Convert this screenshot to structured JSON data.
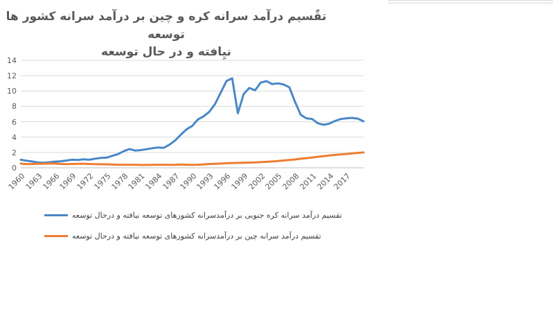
{
  "page": {
    "background": "#ffffff",
    "top_strip_color": "#d9d9d9"
  },
  "chart_data": {
    "type": "line",
    "title": "تقًسیم درآمد سرانه کره و چین بر درآمد سرانه کشور ها توسعه نیِافته و در حال توسعه",
    "title_lines": [
      "تقًسیم درآمد سرانه کره و چین بر درآمد سرانه کشور ها توسعه",
      "نیِافته و در حال توسعه"
    ],
    "xlabel": "",
    "ylabel": "",
    "ylim": [
      0,
      14
    ],
    "y_ticks": [
      0,
      2,
      4,
      6,
      8,
      10,
      12,
      14
    ],
    "grid": "horizontal",
    "grid_color": "#d9d9d9",
    "axis_color": "#bfbfbf",
    "tick_label_color": "#595959",
    "legend_position": "bottom-left",
    "x_tick_labels": [
      "1960",
      "1963",
      "1966",
      "1969",
      "1972",
      "1975",
      "1978",
      "1981",
      "1984",
      "1987",
      "1990",
      "1993",
      "1996",
      "1999",
      "2002",
      "2005",
      "2008",
      "2011",
      "2014",
      "2017"
    ],
    "x": [
      1960,
      1961,
      1962,
      1963,
      1964,
      1965,
      1966,
      1967,
      1968,
      1969,
      1970,
      1971,
      1972,
      1973,
      1974,
      1975,
      1976,
      1977,
      1978,
      1979,
      1980,
      1981,
      1982,
      1983,
      1984,
      1985,
      1986,
      1987,
      1988,
      1989,
      1990,
      1991,
      1992,
      1993,
      1994,
      1995,
      1996,
      1997,
      1998,
      1999,
      2000,
      2001,
      2002,
      2003,
      2004,
      2005,
      2006,
      2007,
      2008,
      2009,
      2010,
      2011,
      2012,
      2013,
      2014,
      2015,
      2016,
      2017,
      2018,
      2019,
      2020
    ],
    "series": [
      {
        "name": "تقسیم درآمد سرانه کره جنوبی بر درآمدسرانه کشورهای توسعه نیافته و درحال توسعه",
        "color": "#4a87c7",
        "values": [
          1.05,
          0.92,
          0.82,
          0.7,
          0.65,
          0.72,
          0.8,
          0.85,
          0.95,
          1.05,
          1.02,
          1.1,
          1.05,
          1.18,
          1.28,
          1.32,
          1.55,
          1.78,
          2.15,
          2.45,
          2.25,
          2.3,
          2.42,
          2.55,
          2.65,
          2.6,
          3.0,
          3.55,
          4.3,
          5.0,
          5.45,
          6.3,
          6.7,
          7.3,
          8.3,
          9.8,
          11.3,
          11.65,
          7.1,
          9.6,
          10.4,
          10.1,
          11.1,
          11.3,
          10.9,
          11.0,
          10.85,
          10.5,
          8.6,
          6.9,
          6.45,
          6.35,
          5.8,
          5.6,
          5.75,
          6.1,
          6.35,
          6.45,
          6.5,
          6.4,
          6.05
        ]
      },
      {
        "name": "تقسیم درآمد سرانه  چین بر درآمدسرانه کشورهای توسعه نیافته و درحال توسعه",
        "color": "#ED7D31",
        "values": [
          0.55,
          0.48,
          0.5,
          0.52,
          0.53,
          0.55,
          0.55,
          0.5,
          0.47,
          0.5,
          0.52,
          0.53,
          0.5,
          0.48,
          0.46,
          0.45,
          0.42,
          0.4,
          0.4,
          0.4,
          0.4,
          0.37,
          0.37,
          0.38,
          0.4,
          0.4,
          0.38,
          0.39,
          0.42,
          0.4,
          0.38,
          0.4,
          0.44,
          0.5,
          0.52,
          0.55,
          0.6,
          0.62,
          0.63,
          0.65,
          0.68,
          0.7,
          0.74,
          0.78,
          0.82,
          0.88,
          0.95,
          1.02,
          1.08,
          1.18,
          1.26,
          1.35,
          1.44,
          1.52,
          1.6,
          1.68,
          1.74,
          1.8,
          1.88,
          1.94,
          2.0
        ]
      }
    ]
  }
}
